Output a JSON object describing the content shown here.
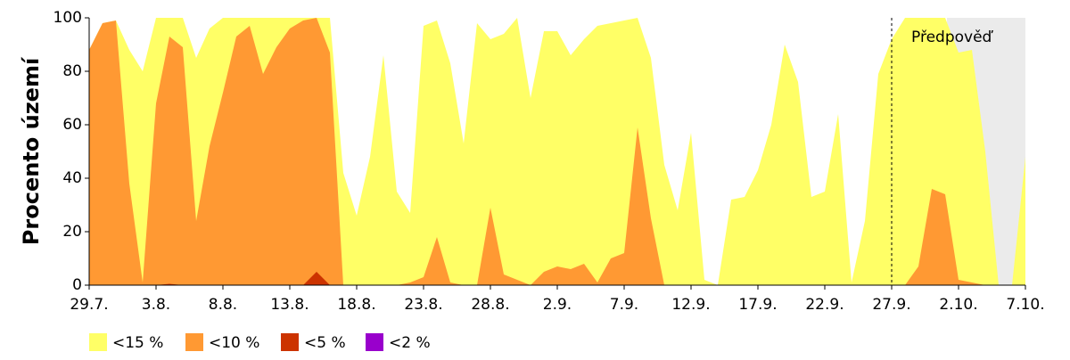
{
  "chart_data": {
    "type": "area",
    "ylabel": "Procento území",
    "annotation": "Předpověď",
    "forecast_from": "27.9.",
    "categories": [
      "29.7.",
      null,
      null,
      null,
      null,
      "3.8.",
      null,
      null,
      null,
      null,
      "8.8.",
      null,
      null,
      null,
      null,
      "13.8.",
      null,
      null,
      null,
      null,
      "18.8.",
      null,
      null,
      null,
      null,
      "23.8.",
      null,
      null,
      null,
      null,
      "28.8.",
      null,
      null,
      null,
      null,
      "2.9.",
      null,
      null,
      null,
      null,
      "7.9.",
      null,
      null,
      null,
      null,
      "12.9.",
      null,
      null,
      null,
      null,
      "17.9.",
      null,
      null,
      null,
      null,
      "22.9.",
      null,
      null,
      null,
      null,
      "27.9.",
      null,
      null,
      null,
      null,
      "2.10.",
      null,
      null,
      null,
      null,
      "7.10."
    ],
    "series": [
      {
        "name": "<15 %",
        "color": "#ffff66",
        "values": [
          88,
          98,
          99,
          88,
          80,
          100,
          100,
          100,
          85,
          96,
          100,
          100,
          100,
          100,
          100,
          100,
          100,
          100,
          100,
          42,
          26,
          48,
          86,
          35,
          27,
          97,
          99,
          83,
          53,
          98,
          92,
          94,
          100,
          70,
          95,
          95,
          86,
          92,
          97,
          98,
          99,
          100,
          85,
          45,
          28,
          57,
          2,
          0,
          32,
          33,
          43,
          60,
          90,
          76,
          33,
          35,
          64,
          1,
          24,
          79,
          92,
          100,
          100,
          100,
          100,
          87,
          88,
          50,
          0,
          0,
          48
        ]
      },
      {
        "name": "<10 %",
        "color": "#ff9933",
        "values": [
          88,
          98,
          99,
          38,
          1,
          68,
          93,
          89,
          24,
          52,
          72,
          93,
          97,
          79,
          89,
          96,
          99,
          100,
          87,
          0,
          0,
          0,
          0,
          0,
          1,
          3,
          18,
          1,
          0,
          0,
          29,
          4,
          2,
          0,
          5,
          7,
          6,
          8,
          1,
          10,
          12,
          59,
          25,
          0,
          0,
          0,
          0,
          0,
          0,
          0,
          0,
          0,
          0,
          0,
          0,
          0,
          0,
          0,
          0,
          0,
          0,
          0,
          7,
          36,
          34,
          2,
          1,
          0,
          0,
          0,
          0
        ]
      },
      {
        "name": "<5 %",
        "color": "#cc3300",
        "values": [
          0,
          0,
          0,
          0,
          0,
          0,
          0.5,
          0,
          0,
          0,
          0,
          0,
          0,
          0,
          0,
          0,
          0,
          5,
          0,
          0,
          0,
          0,
          0,
          0,
          0,
          0,
          0,
          0,
          0,
          0,
          0,
          0,
          0,
          0,
          0,
          0,
          0,
          0,
          0,
          0,
          0,
          0,
          0,
          0,
          0,
          0,
          0,
          0,
          0,
          0,
          0,
          0,
          0,
          0,
          0,
          0,
          0,
          0,
          0,
          0,
          0,
          0,
          0,
          0,
          0,
          0,
          0,
          0,
          0,
          0,
          0
        ]
      },
      {
        "name": "<2 %",
        "color": "#9900cc",
        "values": [
          0,
          0,
          0,
          0,
          0,
          0,
          0,
          0,
          0,
          0,
          0,
          0,
          0,
          0,
          0,
          0,
          0,
          0,
          0,
          0,
          0,
          0,
          0,
          0,
          0,
          0,
          0,
          0,
          0,
          0,
          0,
          0,
          0,
          0,
          0,
          0,
          0,
          0,
          0,
          0,
          0,
          0,
          0,
          0,
          0,
          0,
          0,
          0,
          0,
          0,
          0,
          0,
          0,
          0,
          0,
          0,
          0,
          0,
          0,
          0,
          0,
          0,
          0,
          0,
          0,
          0,
          0,
          0,
          0,
          0,
          0
        ]
      }
    ],
    "ylim": [
      0,
      100
    ],
    "yticks": [
      0,
      20,
      40,
      60,
      80,
      100
    ]
  }
}
